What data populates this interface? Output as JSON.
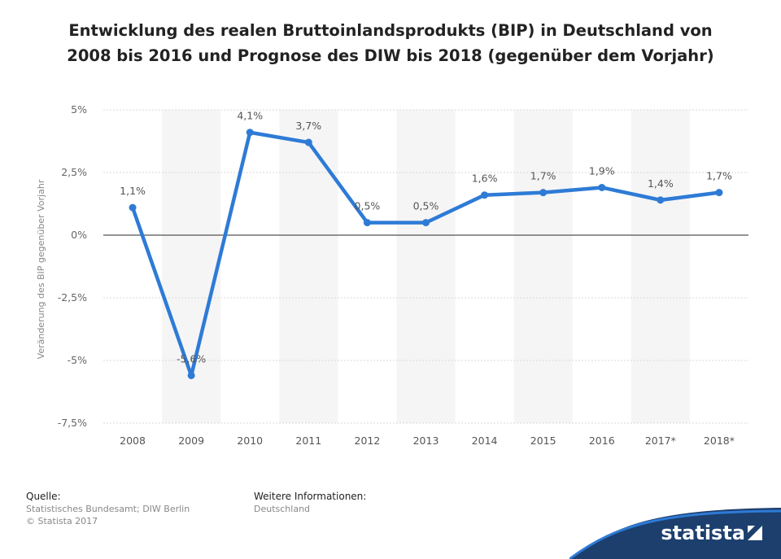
{
  "title": "Entwicklung des realen Bruttoinlandsprodukts (BIP) in Deutschland von 2008 bis 2016 und Prognose des DIW bis 2018 (gegenüber dem Vorjahr)",
  "footer": {
    "source_heading": "Quelle:",
    "source_line": "Statistisches Bundesamt; DIW Berlin",
    "copyright": "© Statista 2017",
    "info_heading": "Weitere Informationen:",
    "info_line": "Deutschland"
  },
  "brand": {
    "name": "statista"
  },
  "colors": {
    "line": "#2e7bd6",
    "band": "#f5f5f5",
    "grid": "#d9d9d9",
    "zero": "#555555",
    "logo": "#1c3f6e"
  },
  "chart_data": {
    "type": "line",
    "categories": [
      "2008",
      "2009",
      "2010",
      "2011",
      "2012",
      "2013",
      "2014",
      "2015",
      "2016",
      "2017*",
      "2018*"
    ],
    "values": [
      1.1,
      -5.6,
      4.1,
      3.7,
      0.5,
      0.5,
      1.6,
      1.7,
      1.9,
      1.4,
      1.7
    ],
    "data_labels": [
      "1,1%",
      "-5,6%",
      "4,1%",
      "3,7%",
      "0,5%",
      "0,5%",
      "1,6%",
      "1,7%",
      "1,9%",
      "1,4%",
      "1,7%"
    ],
    "ylabel": "Veränderung des BIP gegenüber Vorjahr",
    "ylim": [
      -7.5,
      5
    ],
    "yticks": [
      5,
      2.5,
      0,
      -2.5,
      -5,
      -7.5
    ],
    "ytick_labels": [
      "5%",
      "2,5%",
      "0%",
      "-2,5%",
      "-5%",
      "-7,5%"
    ],
    "grid": true
  }
}
